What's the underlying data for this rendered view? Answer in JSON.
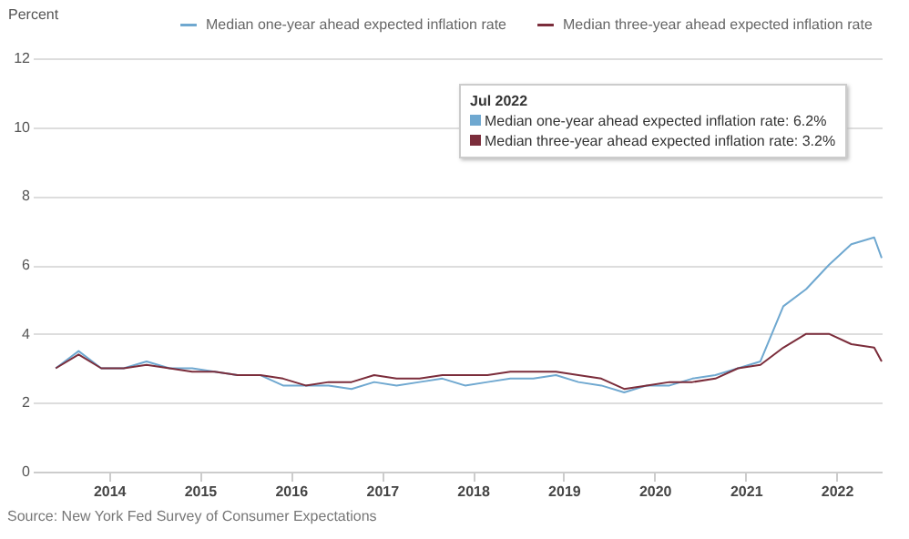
{
  "chart_data": {
    "type": "line",
    "ylabel": "Percent",
    "x": [
      "2013-06",
      "2013-09",
      "2013-12",
      "2014-03",
      "2014-06",
      "2014-09",
      "2014-12",
      "2015-03",
      "2015-06",
      "2015-09",
      "2015-12",
      "2016-03",
      "2016-06",
      "2016-09",
      "2016-12",
      "2017-03",
      "2017-06",
      "2017-09",
      "2017-12",
      "2018-03",
      "2018-06",
      "2018-09",
      "2018-12",
      "2019-03",
      "2019-06",
      "2019-09",
      "2019-12",
      "2020-03",
      "2020-06",
      "2020-09",
      "2020-12",
      "2021-03",
      "2021-06",
      "2021-09",
      "2021-12",
      "2022-03",
      "2022-06",
      "2022-07"
    ],
    "series": [
      {
        "name": "Median one-year ahead expected inflation rate",
        "color": "#6fa8d0",
        "values": [
          3.0,
          3.5,
          3.0,
          3.0,
          3.2,
          3.0,
          3.0,
          2.9,
          2.8,
          2.8,
          2.5,
          2.5,
          2.5,
          2.4,
          2.6,
          2.5,
          2.6,
          2.7,
          2.5,
          2.6,
          2.7,
          2.7,
          2.8,
          2.6,
          2.5,
          2.3,
          2.5,
          2.5,
          2.7,
          2.8,
          3.0,
          3.2,
          4.8,
          5.3,
          6.0,
          6.6,
          6.8,
          6.2
        ]
      },
      {
        "name": "Median three-year ahead expected inflation rate",
        "color": "#7b2d3b",
        "values": [
          3.0,
          3.4,
          3.0,
          3.0,
          3.1,
          3.0,
          2.9,
          2.9,
          2.8,
          2.8,
          2.7,
          2.5,
          2.6,
          2.6,
          2.8,
          2.7,
          2.7,
          2.8,
          2.8,
          2.8,
          2.9,
          2.9,
          2.9,
          2.8,
          2.7,
          2.4,
          2.5,
          2.6,
          2.6,
          2.7,
          3.0,
          3.1,
          3.6,
          4.0,
          4.0,
          3.7,
          3.6,
          3.2
        ]
      }
    ],
    "xlim": [
      "2013-03",
      "2022-07"
    ],
    "xticks": [
      "2014",
      "2015",
      "2016",
      "2017",
      "2018",
      "2019",
      "2020",
      "2021",
      "2022"
    ],
    "ylim": [
      0,
      12
    ],
    "yticks": [
      0,
      2,
      4,
      6,
      8,
      10,
      12
    ],
    "grid": "y",
    "legend": "top right",
    "marker": "none",
    "line_style": "solid",
    "annotations": [
      "Jul 2022",
      "Median one-year ahead expected inflation rate: 6.2%",
      "Median three-year ahead expected inflation rate: 3.2%",
      "Source: New York Fed Survey of Consumer Expectations"
    ]
  }
}
